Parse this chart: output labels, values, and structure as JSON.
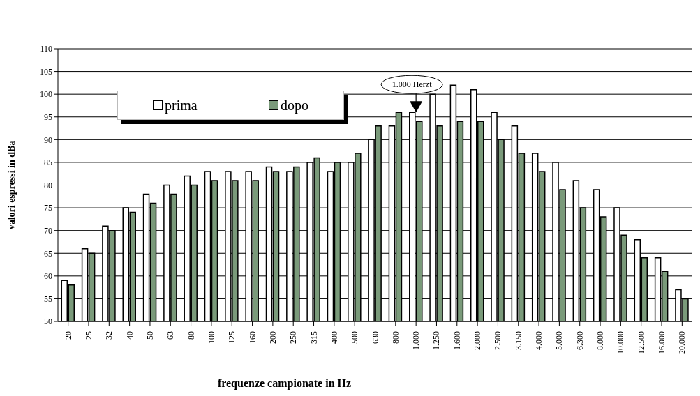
{
  "chart_data": {
    "type": "bar",
    "xlabel": "frequenze campionate in Hz",
    "ylabel": "valori espressi in dBa",
    "categories": [
      "20",
      "25",
      "32",
      "40",
      "50",
      "63",
      "80",
      "100",
      "125",
      "160",
      "200",
      "250",
      "315",
      "400",
      "500",
      "630",
      "800",
      "1.000",
      "1.250",
      "1.600",
      "2.000",
      "2.500",
      "3.150",
      "4.000",
      "5.000",
      "6.300",
      "8.000",
      "10.000",
      "12.500",
      "16.000",
      "20.000"
    ],
    "series": [
      {
        "name": "prima",
        "color": "#ffffff",
        "values": [
          59,
          66,
          71,
          75,
          78,
          80,
          82,
          83,
          83,
          83,
          84,
          83,
          85,
          83,
          85,
          90,
          93,
          96,
          100,
          102,
          101,
          96,
          93,
          87,
          85,
          81,
          79,
          75,
          68,
          64,
          57
        ]
      },
      {
        "name": "dopo",
        "color": "#7a9a7a",
        "values": [
          58,
          65,
          70,
          74,
          76,
          78,
          80,
          81,
          81,
          81,
          83,
          84,
          86,
          85,
          87,
          93,
          96,
          94,
          93,
          94,
          94,
          90,
          87,
          83,
          79,
          75,
          73,
          69,
          64,
          61,
          55
        ]
      }
    ],
    "ylim": [
      50,
      110
    ],
    "yticks": [
      50,
      55,
      60,
      65,
      70,
      75,
      80,
      85,
      90,
      95,
      100,
      105,
      110
    ],
    "grid": "y",
    "legend": "top left",
    "annotations": [
      {
        "text": "1.000 Herzt",
        "x": "1.000",
        "y": 96
      }
    ]
  }
}
